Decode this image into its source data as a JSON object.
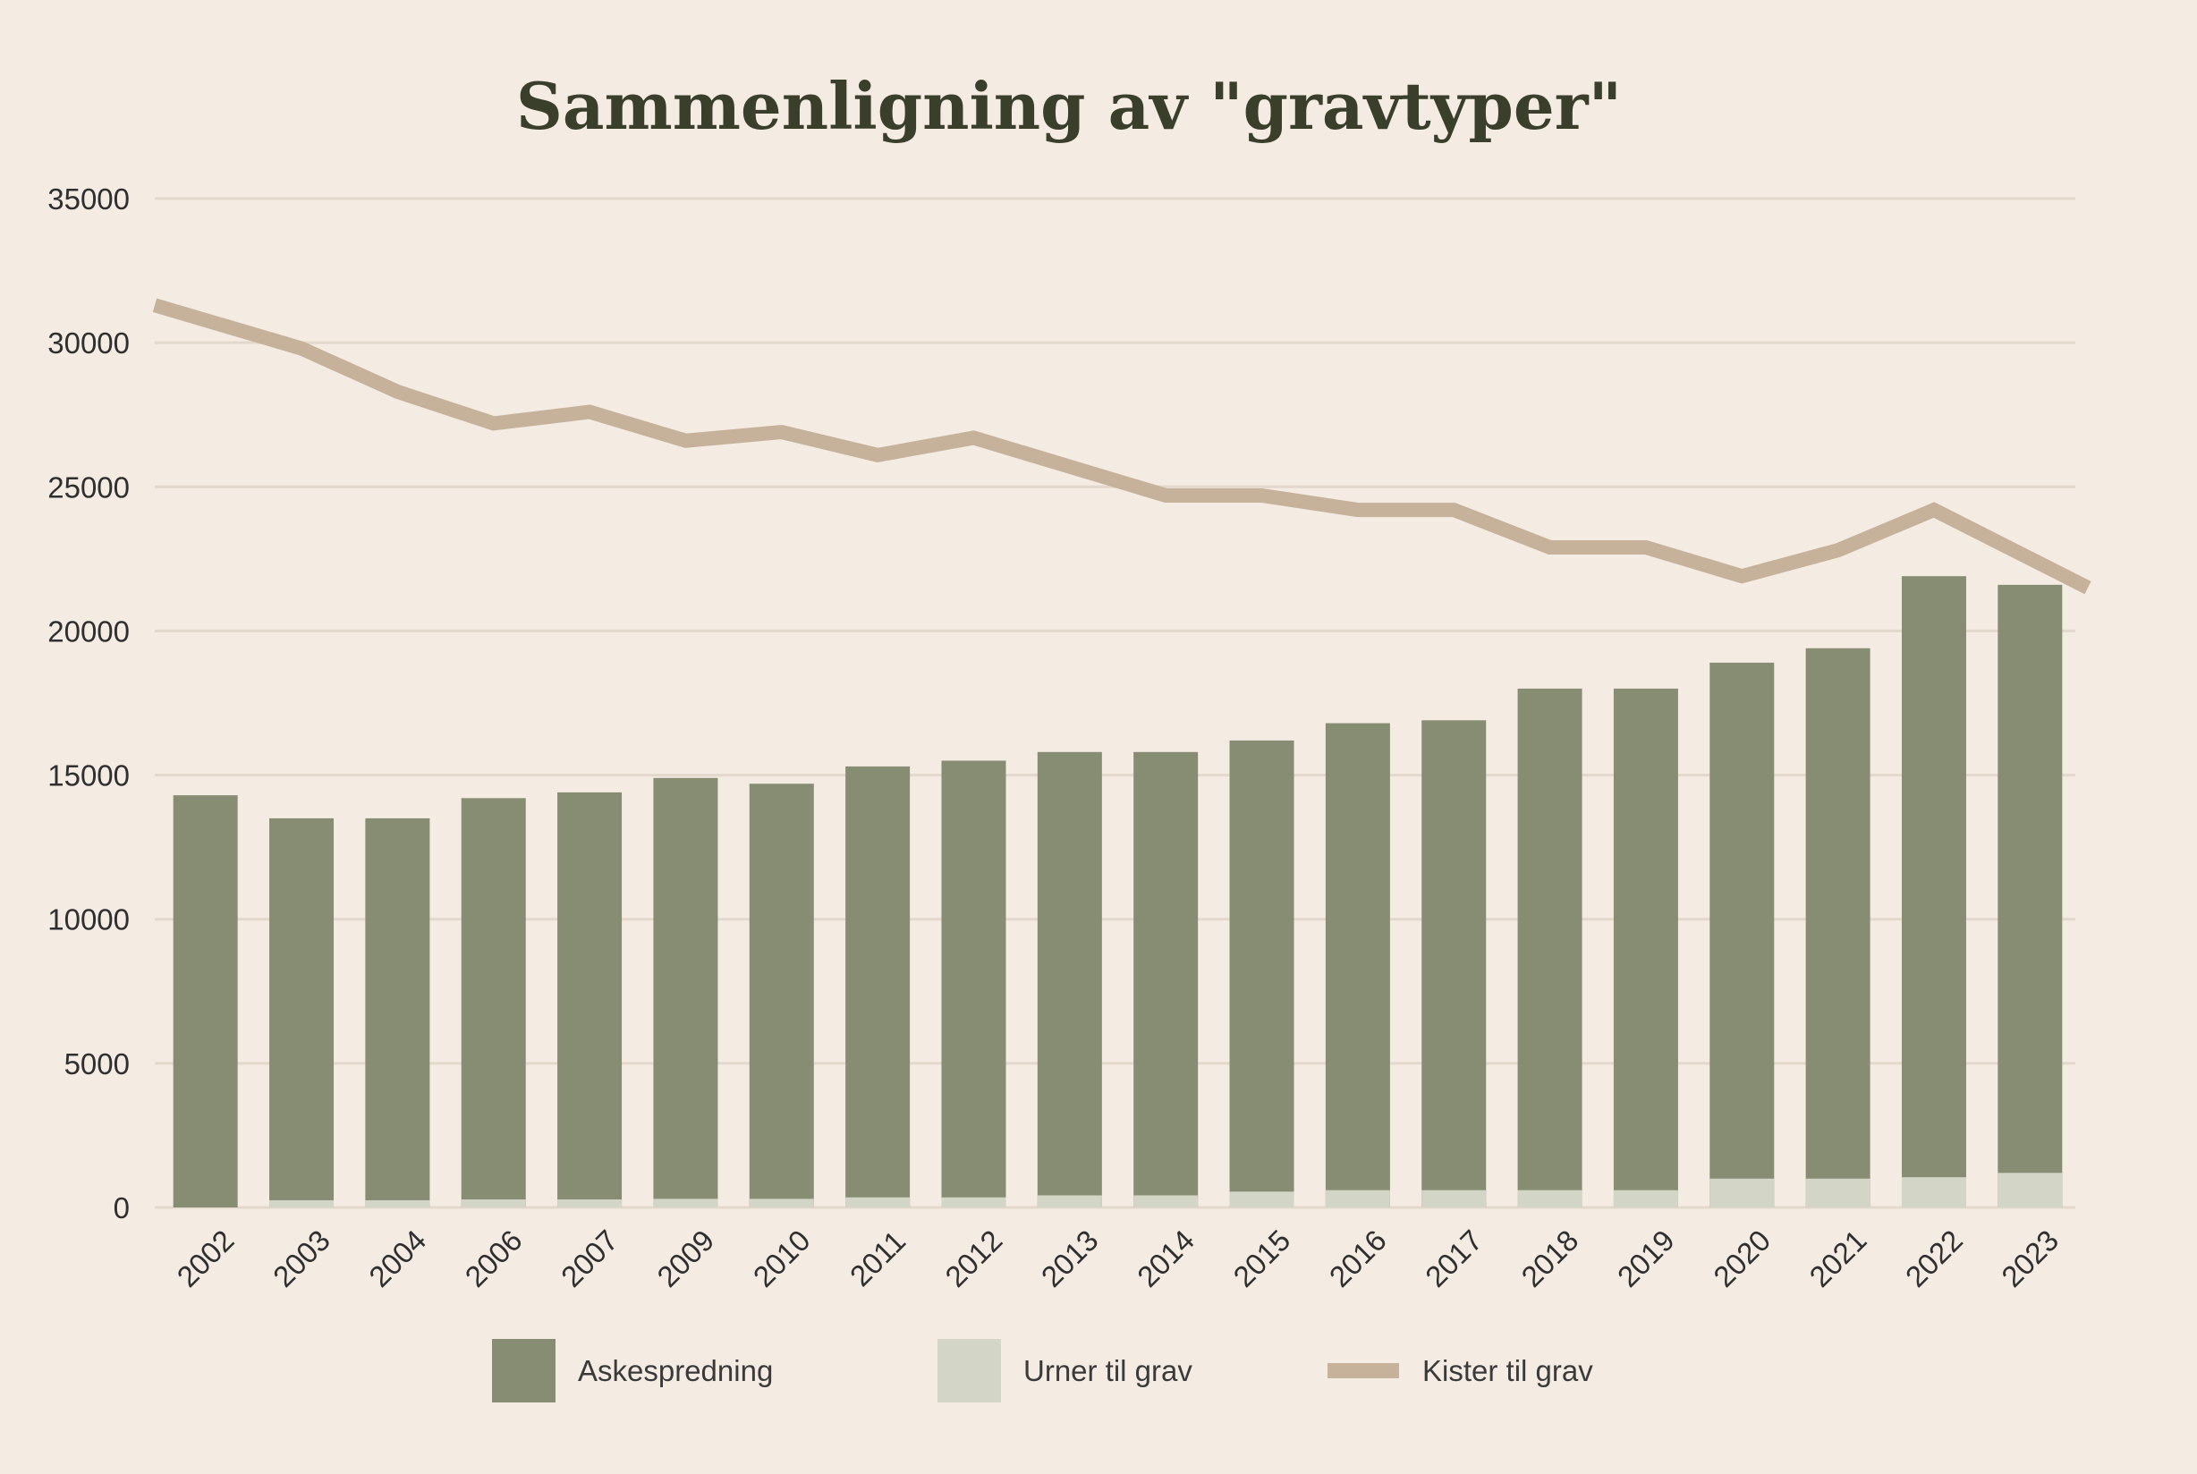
{
  "chart_data": {
    "type": "bar",
    "title": "Sammenligning av \"gravtyper\"",
    "xlabel": "",
    "ylabel": "",
    "ylim": [
      0,
      35000
    ],
    "yticks": [
      "35000",
      "30000",
      "25000",
      "20000",
      "15000",
      "10000",
      "5000",
      "0"
    ],
    "grid": true,
    "legend_position": "bottom",
    "categories": [
      "2002",
      "2003",
      "2004",
      "2006",
      "2007",
      "2009",
      "2010",
      "2011",
      "2012",
      "2013",
      "2014",
      "2015",
      "2016",
      "2017",
      "2018",
      "2019",
      "2020",
      "2021",
      "2022",
      "2023"
    ],
    "series": [
      {
        "name": "Askespredning",
        "kind": "bar",
        "color": "#868d72",
        "values": [
          14300,
          13500,
          13500,
          14200,
          14400,
          14900,
          14700,
          15300,
          15500,
          15800,
          15800,
          16200,
          16800,
          16900,
          18000,
          18000,
          18900,
          19400,
          21900,
          21600
        ]
      },
      {
        "name": "Urner til grav",
        "kind": "bar",
        "color": "#d3d5c7",
        "values": [
          0,
          250,
          250,
          280,
          280,
          300,
          300,
          350,
          350,
          420,
          420,
          550,
          600,
          600,
          600,
          600,
          1000,
          1000,
          1050,
          1200
        ]
      },
      {
        "name": "Kister til grav",
        "kind": "line",
        "color": "#c6b29b",
        "values": [
          31300,
          29800,
          28300,
          27200,
          27600,
          26600,
          26900,
          26100,
          26700,
          25700,
          24700,
          24700,
          24200,
          24200,
          22900,
          22900,
          21900,
          22800,
          24200,
          21500
        ]
      }
    ]
  }
}
